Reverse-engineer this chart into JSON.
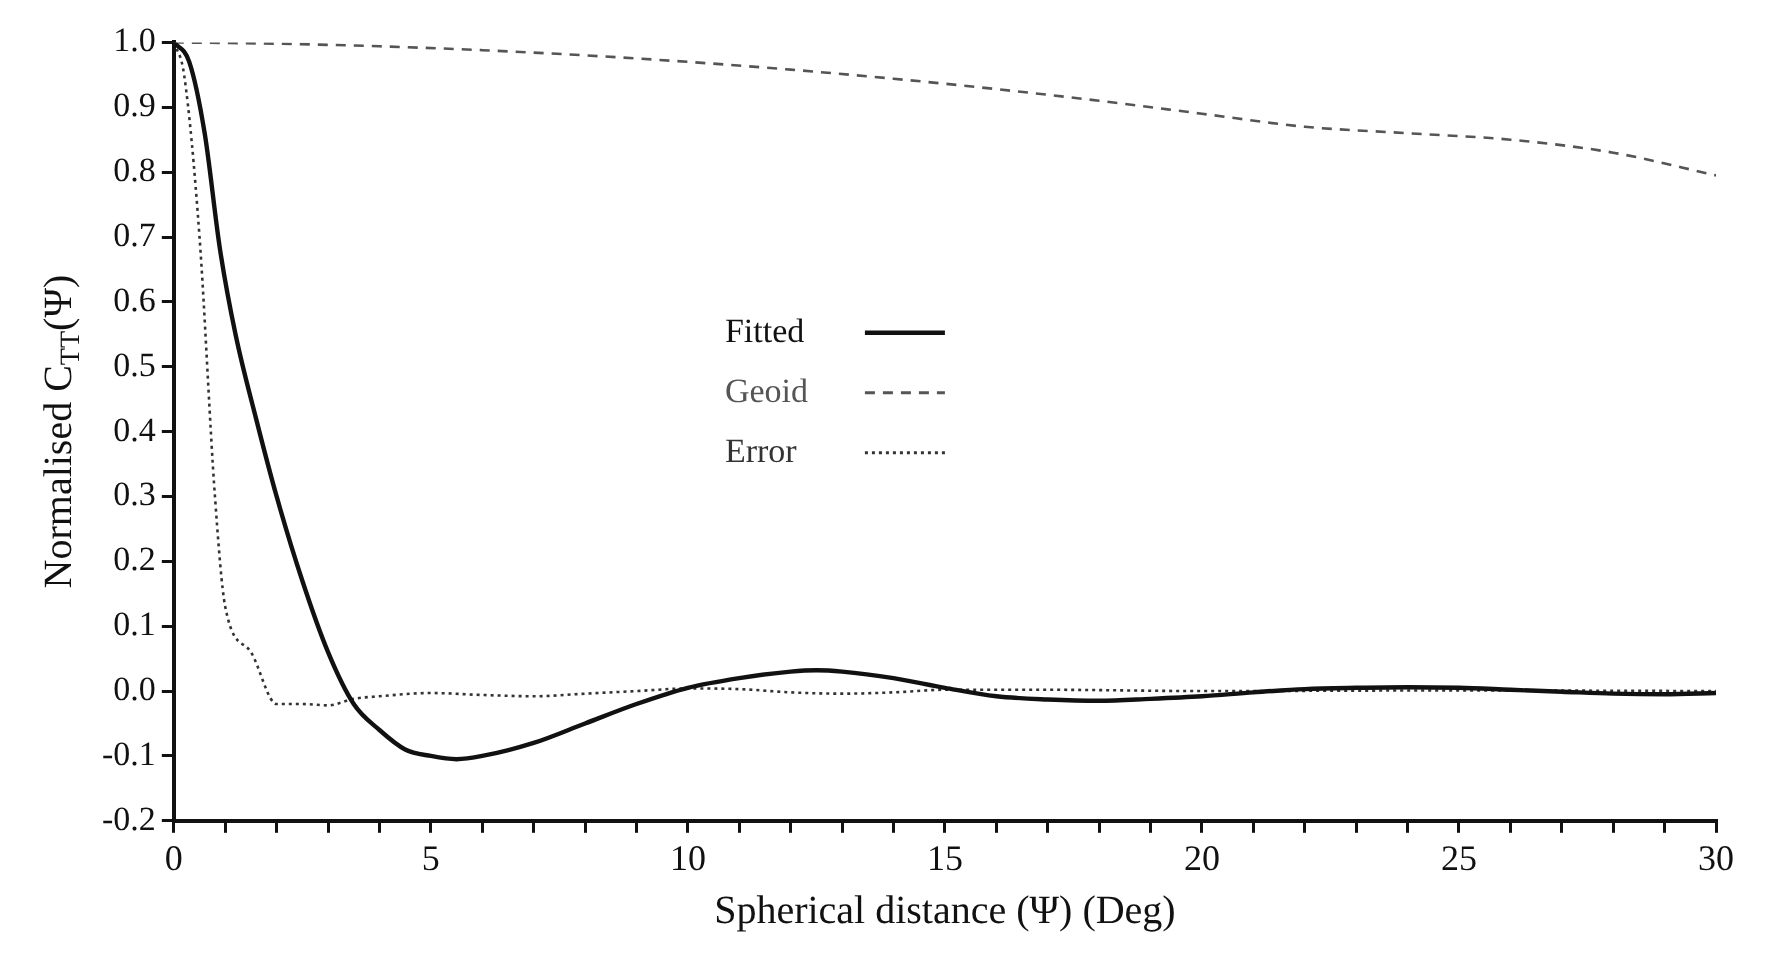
{
  "chart_data": {
    "type": "line",
    "xlabel": "Spherical distance (Ψ) (Deg)",
    "ylabel": "Normalised C$_{TT}$(Ψ)",
    "xlim": [
      0,
      30
    ],
    "ylim": [
      -0.2,
      1.0
    ],
    "xticks": [
      0,
      {
        "value": 1,
        "label": null
      },
      {
        "value": 2,
        "label": null
      },
      {
        "value": 3,
        "label": null
      },
      {
        "value": 4,
        "label": null
      },
      5,
      {
        "value": 6,
        "label": null
      },
      {
        "value": 7,
        "label": null
      },
      {
        "value": 8,
        "label": null
      },
      {
        "value": 9,
        "label": null
      },
      10,
      {
        "value": 11,
        "label": null
      },
      {
        "value": 12,
        "label": null
      },
      {
        "value": 13,
        "label": null
      },
      {
        "value": 14,
        "label": null
      },
      15,
      {
        "value": 16,
        "label": null
      },
      {
        "value": 17,
        "label": null
      },
      {
        "value": 18,
        "label": null
      },
      {
        "value": 19,
        "label": null
      },
      20,
      {
        "value": 21,
        "label": null
      },
      {
        "value": 22,
        "label": null
      },
      {
        "value": 23,
        "label": null
      },
      {
        "value": 24,
        "label": null
      },
      25,
      {
        "value": 26,
        "label": null
      },
      {
        "value": 27,
        "label": null
      },
      {
        "value": 28,
        "label": null
      },
      {
        "value": 29,
        "label": null
      },
      30
    ],
    "yticks": [
      {
        "value": -0.2,
        "label": "-0.2"
      },
      {
        "value": -0.1,
        "label": "-0.1"
      },
      {
        "value": 0,
        "label": "0.0"
      },
      {
        "value": 0.1,
        "label": "0.1"
      },
      {
        "value": 0.2,
        "label": "0.2"
      },
      {
        "value": 0.3,
        "label": "0.3"
      },
      {
        "value": 0.4,
        "label": "0.4"
      },
      {
        "value": 0.5,
        "label": "0.5"
      },
      {
        "value": 0.6,
        "label": "0.6"
      },
      {
        "value": 0.7,
        "label": "0.7"
      },
      {
        "value": 0.8,
        "label": "0.8"
      },
      {
        "value": 0.9,
        "label": "0.9"
      },
      {
        "value": 1.0,
        "label": "1.0"
      }
    ],
    "grid": false,
    "legend": "center",
    "marker": "none",
    "series": [
      {
        "name": "Fitted",
        "color": "#111111",
        "line_style": "solid",
        "x": [
          0,
          0.3,
          0.6,
          0.9,
          1.2,
          1.6,
          2.0,
          2.5,
          3.0,
          3.5,
          4.0,
          4.5,
          5.0,
          5.5,
          6.0,
          7.0,
          8.0,
          9.0,
          10.0,
          11.0,
          12.0,
          12.5,
          13.0,
          14.0,
          15.0,
          16.0,
          17.0,
          18.0,
          19.0,
          20.0,
          21.0,
          22.0,
          23.0,
          24.0,
          25.0,
          26.0,
          27.0,
          28.0,
          29.0,
          30.0
        ],
        "values": [
          1.0,
          0.97,
          0.86,
          0.68,
          0.55,
          0.42,
          0.3,
          0.17,
          0.06,
          -0.02,
          -0.06,
          -0.09,
          -0.1,
          -0.105,
          -0.1,
          -0.08,
          -0.05,
          -0.02,
          0.005,
          0.02,
          0.03,
          0.032,
          0.03,
          0.02,
          0.005,
          -0.008,
          -0.013,
          -0.015,
          -0.012,
          -0.008,
          -0.002,
          0.003,
          0.005,
          0.006,
          0.005,
          0.002,
          -0.001,
          -0.004,
          -0.005,
          -0.003
        ]
      },
      {
        "name": "Geoid",
        "color": "#555555",
        "line_style": "dashed",
        "x": [
          0,
          2,
          4,
          6,
          8,
          10,
          12,
          14,
          16,
          18,
          20,
          22,
          24,
          26,
          28,
          30
        ],
        "values": [
          1.0,
          0.998,
          0.994,
          0.988,
          0.98,
          0.97,
          0.958,
          0.944,
          0.928,
          0.91,
          0.89,
          0.87,
          0.86,
          0.85,
          0.83,
          0.795
        ]
      },
      {
        "name": "Error",
        "color": "#333333",
        "line_style": "dotted",
        "x": [
          0,
          0.2,
          0.5,
          0.8,
          1.0,
          1.5,
          2.0,
          2.5,
          3.0,
          3.5,
          4.0,
          5.0,
          6.0,
          7.0,
          8.0,
          9.0,
          10.0,
          11.0,
          12.0,
          13.0,
          14.0,
          15.0,
          17.0,
          20.0,
          25.0,
          30.0
        ],
        "values": [
          1.0,
          0.95,
          0.7,
          0.3,
          0.13,
          0.06,
          -0.02,
          -0.02,
          -0.022,
          -0.012,
          -0.008,
          -0.003,
          -0.006,
          -0.008,
          -0.004,
          0.0,
          0.004,
          0.003,
          -0.002,
          -0.004,
          -0.002,
          0.002,
          0.002,
          0.0,
          0.001,
          0.0
        ]
      }
    ]
  }
}
